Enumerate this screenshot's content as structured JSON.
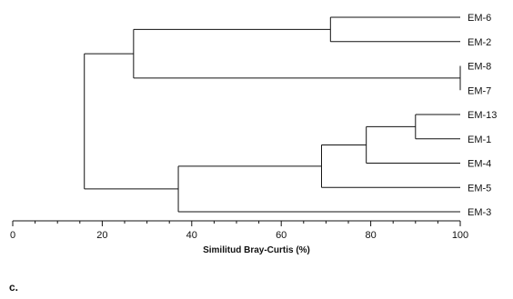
{
  "chart_data": {
    "type": "dendrogram",
    "xlabel": "Similitud Bray-Curtis (%)",
    "xlim": [
      0,
      100
    ],
    "xticks": [
      0,
      20,
      40,
      60,
      80,
      100
    ],
    "xtick_labels": [
      "0",
      "20",
      "40",
      "60",
      "80",
      "100"
    ],
    "leaves": [
      "EM-6",
      "EM-2",
      "EM-8",
      "EM-7",
      "EM-13",
      "EM-1",
      "EM-4",
      "EM-5",
      "EM-3"
    ],
    "merges": [
      {
        "id": "n1",
        "children": [
          "EM-8",
          "EM-7"
        ],
        "similarity": 100
      },
      {
        "id": "n2",
        "children": [
          "EM-6",
          "EM-2"
        ],
        "similarity": 71
      },
      {
        "id": "n3",
        "children": [
          "EM-13",
          "EM-1"
        ],
        "similarity": 90
      },
      {
        "id": "n4",
        "children": [
          "n3",
          "EM-4"
        ],
        "similarity": 79
      },
      {
        "id": "n5",
        "children": [
          "n4",
          "EM-5"
        ],
        "similarity": 69
      },
      {
        "id": "n6",
        "children": [
          "n2",
          "n1"
        ],
        "similarity": 27
      },
      {
        "id": "n7",
        "children": [
          "n5",
          "EM-3"
        ],
        "similarity": 37
      },
      {
        "id": "n8",
        "children": [
          "n6",
          "n7"
        ],
        "similarity": 16
      }
    ]
  },
  "panel_letter": "c."
}
